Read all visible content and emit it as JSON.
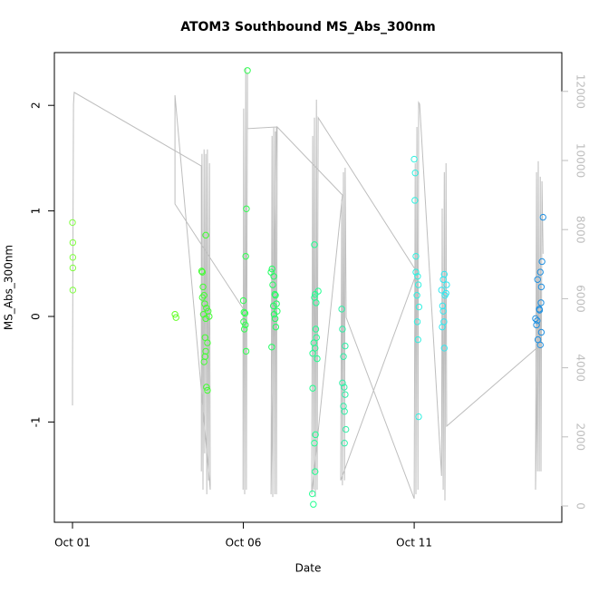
{
  "chart_data": {
    "type": "scatter",
    "title": "ATOM3 Southbound MS_Abs_300nm",
    "x_label": "Date",
    "y_label": "MS_Abs_300nm",
    "xlim": [
      -0.53,
      14.32
    ],
    "ylim": [
      -1.95,
      2.5
    ],
    "y2lim": [
      -472,
      13123
    ],
    "xticks": [
      {
        "value": 0,
        "label": "Oct 01"
      },
      {
        "value": 5,
        "label": "Oct 06"
      },
      {
        "value": 10,
        "label": "Oct 11"
      }
    ],
    "yticks": [
      -1,
      0,
      1,
      2
    ],
    "y2ticks": [
      0,
      2000,
      4000,
      6000,
      8000,
      10000,
      12000
    ],
    "series": [
      {
        "color": "#80ff40",
        "x": [
          0.0,
          0.01,
          0.01,
          0.01,
          0.01
        ],
        "values": [
          0.89,
          0.7,
          0.56,
          0.46,
          0.25
        ]
      },
      {
        "color": "#60ff20",
        "x": [
          3.0,
          3.03
        ],
        "values": [
          0.02,
          -0.01
        ]
      },
      {
        "color": "#40ff30",
        "x": [
          3.9,
          3.78,
          3.8,
          3.82,
          3.85,
          3.8,
          3.87,
          3.92,
          3.97,
          3.83,
          4.0,
          3.9,
          3.88,
          3.95,
          3.9,
          3.88,
          3.85,
          3.92,
          3.95
        ],
        "values": [
          0.77,
          0.43,
          0.42,
          0.28,
          0.2,
          0.18,
          0.12,
          0.08,
          0.05,
          0.02,
          0.0,
          -0.02,
          -0.2,
          -0.25,
          -0.33,
          -0.38,
          -0.43,
          -0.67,
          -0.7
        ]
      },
      {
        "color": "#30ff50",
        "x": [
          5.12,
          5.09,
          5.07,
          5.0,
          5.02,
          5.05,
          5.01,
          5.06,
          5.03,
          5.08
        ],
        "values": [
          2.33,
          1.02,
          0.57,
          0.15,
          0.04,
          0.03,
          -0.05,
          -0.08,
          -0.12,
          -0.33
        ]
      },
      {
        "color": "#20ff60",
        "x": [
          5.84,
          5.81,
          5.89,
          5.86,
          5.92,
          5.94,
          5.97,
          5.88,
          5.99,
          5.9,
          5.93,
          5.95,
          5.83
        ],
        "values": [
          0.45,
          0.42,
          0.38,
          0.3,
          0.21,
          0.2,
          0.12,
          0.1,
          0.05,
          0.02,
          -0.02,
          -0.1,
          -0.29
        ]
      },
      {
        "color": "#20ff90",
        "x": [
          7.08,
          7.19,
          7.1,
          7.08,
          7.13,
          7.12,
          7.14,
          7.06,
          7.1,
          7.03,
          7.16,
          7.03,
          7.11,
          7.08,
          7.1,
          7.02,
          7.05
        ],
        "values": [
          0.68,
          0.24,
          0.21,
          0.18,
          0.13,
          -0.12,
          -0.2,
          -0.25,
          -0.3,
          -0.35,
          -0.4,
          -0.68,
          -1.12,
          -1.2,
          -1.47,
          -1.68,
          -1.78
        ]
      },
      {
        "color": "#30f0a8",
        "x": [
          7.88,
          7.9,
          7.98,
          7.93,
          7.9,
          7.95,
          7.98,
          7.93,
          7.96,
          8.0,
          7.96
        ],
        "values": [
          0.07,
          -0.12,
          -0.28,
          -0.38,
          -0.63,
          -0.67,
          -0.74,
          -0.85,
          -0.9,
          -1.07,
          -1.2
        ]
      },
      {
        "color": "#30f0e0",
        "x": [
          10.0,
          10.03,
          10.02,
          10.05,
          10.05,
          10.1,
          10.12,
          10.08,
          10.14,
          10.09,
          10.11,
          10.13
        ],
        "values": [
          1.49,
          1.36,
          1.1,
          0.57,
          0.42,
          0.38,
          0.3,
          0.2,
          0.09,
          -0.05,
          -0.22,
          -0.95
        ]
      },
      {
        "color": "#30e8f0",
        "x": [
          10.88,
          10.85,
          10.95,
          10.8,
          10.93,
          10.9,
          10.83,
          10.85,
          10.87,
          10.82,
          10.88
        ],
        "values": [
          0.4,
          0.35,
          0.3,
          0.25,
          0.22,
          0.2,
          0.1,
          0.05,
          -0.05,
          -0.1,
          -0.3
        ]
      },
      {
        "color": "#2090e0",
        "x": [
          13.77,
          13.74,
          13.69,
          13.61,
          13.72,
          13.71,
          13.66,
          13.67,
          13.55,
          13.6,
          13.58,
          13.72,
          13.62,
          13.69
        ],
        "values": [
          0.94,
          0.52,
          0.42,
          0.35,
          0.28,
          0.13,
          0.07,
          0.06,
          -0.02,
          -0.04,
          -0.08,
          -0.15,
          -0.22,
          -0.27
        ]
      },
      {
        "type": "line",
        "axis": "y2",
        "color": "#bebebe",
        "x": [
          0,
          0,
          0.03,
          0.05,
          3.77,
          3.77,
          3.79,
          3.82,
          3.85,
          3.87,
          3.9,
          3.93,
          3.95,
          3.98,
          4.01,
          4.03,
          3.0,
          3.0,
          4.99,
          4.99,
          5.01,
          5.04,
          5.07,
          5.09,
          5.12,
          5.12,
          5.97,
          5.81,
          5.84,
          5.86,
          5.89,
          5.92,
          5.94,
          5.97,
          5.99,
          7.9,
          7.0,
          7.03,
          7.06,
          7.08,
          7.11,
          7.14,
          7.16,
          7.19,
          10.08,
          7.85,
          7.88,
          7.9,
          7.93,
          7.96,
          7.98,
          8.01,
          10.0,
          10.03,
          10.05,
          10.08,
          10.11,
          10.13,
          10.16,
          10.8,
          10.82,
          10.85,
          10.88,
          10.9,
          10.93,
          10.95,
          13.61,
          13.55,
          13.58,
          13.61,
          13.63,
          13.66,
          13.69,
          13.71,
          13.74,
          13.77
        ],
        "values": [
          2910,
          3890,
          11630,
          11970,
          9840,
          1000,
          10190,
          470,
          10320,
          1520,
          10190,
          340,
          10320,
          740,
          9920,
          470,
          11890,
          8740,
          5720,
          470,
          11500,
          340,
          12680,
          470,
          12550,
          10920,
          10970,
          340,
          10710,
          260,
          10970,
          340,
          10840,
          340,
          10970,
          9000,
          340,
          10710,
          470,
          11240,
          260,
          11760,
          470,
          11240,
          6770,
          740,
          8870,
          600,
          9660,
          740,
          9790,
          5460,
          210,
          9920,
          340,
          10970,
          470,
          11680,
          11630,
          870,
          8610,
          470,
          9660,
          160,
          9920,
          2310,
          4590,
          470,
          9660,
          1000,
          9980,
          1000,
          9530,
          1000,
          9400,
          7300
        ]
      }
    ]
  }
}
